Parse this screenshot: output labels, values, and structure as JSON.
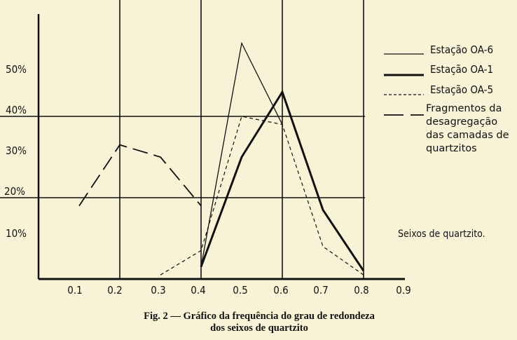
{
  "chart_data": {
    "type": "line",
    "title": "Fig. 2 — Gráfico da frequência do grau de redondeza",
    "subtitle": "dos seixos de quartzito",
    "annotation": "Seixos de quartzito.",
    "xlabel": "",
    "ylabel": "",
    "xlim": [
      0,
      0.9
    ],
    "ylim": [
      0,
      60
    ],
    "x_ticks": [
      "0.1",
      "0.2",
      "0.3",
      "0.4",
      "0.5",
      "0.6",
      "0.7",
      "0.8",
      "0.9"
    ],
    "y_ticks": [
      "10%",
      "20%",
      "30%",
      "40%",
      "50%"
    ],
    "grid": "x at 0.2, 0.4, 0.6, 0.8; y at 20%, 40%",
    "legend_position": "right",
    "series": [
      {
        "name": "Estação OA-6",
        "style": "thin-solid",
        "x": [
          0.4,
          0.5,
          0.6
        ],
        "y": [
          3,
          58,
          38
        ]
      },
      {
        "name": "Estação OA-1",
        "style": "thick-solid",
        "x": [
          0.4,
          0.5,
          0.6,
          0.7,
          0.8
        ],
        "y": [
          3,
          30,
          46,
          17,
          2
        ]
      },
      {
        "name": "Estação OA-5",
        "style": "short-dash",
        "x": [
          0.3,
          0.4,
          0.5,
          0.6,
          0.7,
          0.8
        ],
        "y": [
          1,
          7,
          40,
          38,
          8,
          1
        ]
      },
      {
        "name": "Fragmentos da desagregação das camadas de quartzitos",
        "style": "long-dash",
        "x": [
          0.1,
          0.2,
          0.3,
          0.4
        ],
        "y": [
          18,
          33,
          30,
          18
        ]
      }
    ]
  }
}
